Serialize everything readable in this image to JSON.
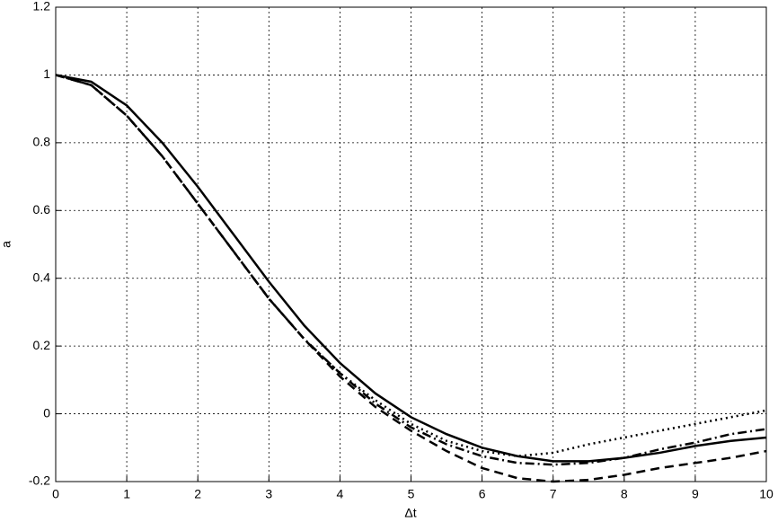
{
  "chart_data": {
    "type": "line",
    "x_label": "Δt",
    "y_label": "a",
    "x": [
      0,
      0.5,
      1,
      1.5,
      2,
      2.5,
      3,
      3.5,
      4,
      4.5,
      5,
      5.5,
      6,
      6.5,
      7,
      7.5,
      8,
      8.5,
      9,
      9.5,
      10
    ],
    "series": [
      {
        "color": "#000000",
        "dash": "solid",
        "values": [
          1,
          0.98,
          0.91,
          0.8,
          0.67,
          0.53,
          0.39,
          0.26,
          0.15,
          0.06,
          -0.01,
          -0.06,
          -0.1,
          -0.125,
          -0.14,
          -0.14,
          -0.13,
          -0.115,
          -0.095,
          -0.08,
          -0.07
        ]
      },
      {
        "color": "#000000",
        "dash": "dotted",
        "values": [
          1,
          0.97,
          0.88,
          0.76,
          0.62,
          0.48,
          0.34,
          0.22,
          0.12,
          0.04,
          -0.03,
          -0.08,
          -0.11,
          -0.125,
          -0.115,
          -0.09,
          -0.07,
          -0.05,
          -0.03,
          -0.01,
          0.01
        ]
      },
      {
        "color": "#000000",
        "dash": "dashdot",
        "values": [
          1,
          0.97,
          0.88,
          0.76,
          0.62,
          0.48,
          0.34,
          0.22,
          0.12,
          0.03,
          -0.04,
          -0.09,
          -0.125,
          -0.145,
          -0.15,
          -0.145,
          -0.13,
          -0.105,
          -0.085,
          -0.06,
          -0.045
        ]
      },
      {
        "color": "#000000",
        "dash": "dashed",
        "values": [
          1,
          0.97,
          0.88,
          0.76,
          0.62,
          0.48,
          0.34,
          0.22,
          0.11,
          0.02,
          -0.05,
          -0.11,
          -0.16,
          -0.19,
          -0.2,
          -0.195,
          -0.18,
          -0.16,
          -0.145,
          -0.13,
          -0.11
        ]
      }
    ],
    "xlim": [
      0,
      10
    ],
    "xticks": [
      0,
      1,
      2,
      3,
      4,
      5,
      6,
      7,
      8,
      9,
      10
    ],
    "ylim": [
      -0.2,
      1.2
    ],
    "yticks": [
      -0.2,
      0,
      0.2,
      0.4,
      0.6,
      0.8,
      1,
      1.2
    ],
    "grid": true
  }
}
